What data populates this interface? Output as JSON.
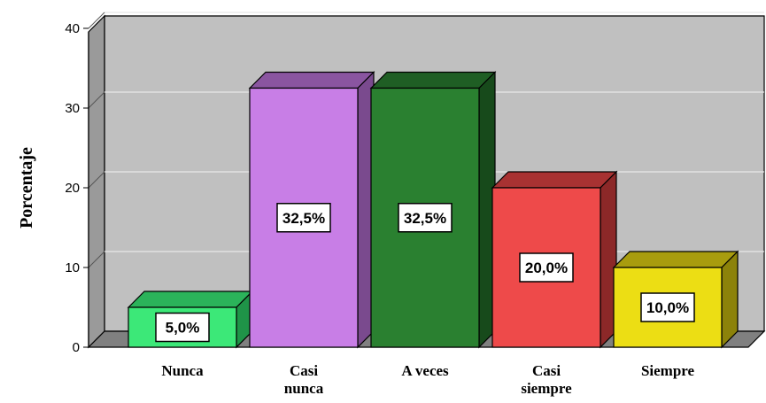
{
  "chart_data": {
    "type": "bar",
    "categories": [
      [
        "Nunca"
      ],
      [
        "Casi",
        "nunca"
      ],
      [
        "A veces"
      ],
      [
        "Casi",
        "siempre"
      ],
      [
        "Siempre"
      ]
    ],
    "values": [
      5.0,
      32.5,
      32.5,
      20.0,
      10.0
    ],
    "data_labels": [
      "5,0%",
      "32,5%",
      "32,5%",
      "20,0%",
      "10,0%"
    ],
    "ylabel": "Porcentaje",
    "ylim": [
      0,
      40
    ],
    "yticks": [
      "0",
      "10",
      "20",
      "30",
      "40"
    ],
    "grid": true,
    "bar_colors": [
      {
        "front": "#3ce878",
        "top": "#2bb35a",
        "side": "#1f9448"
      },
      {
        "front": "#c87ee6",
        "top": "#8a55a0",
        "side": "#7a4a8e"
      },
      {
        "front": "#2a8030",
        "top": "#1f5e24",
        "side": "#174a1b"
      },
      {
        "front": "#ee4a4a",
        "top": "#a83232",
        "side": "#8c2828"
      },
      {
        "front": "#ecde14",
        "top": "#a89c0e",
        "side": "#8c820a"
      }
    ],
    "wall_color": "#c0c0c0",
    "floor_color": "#808080"
  }
}
